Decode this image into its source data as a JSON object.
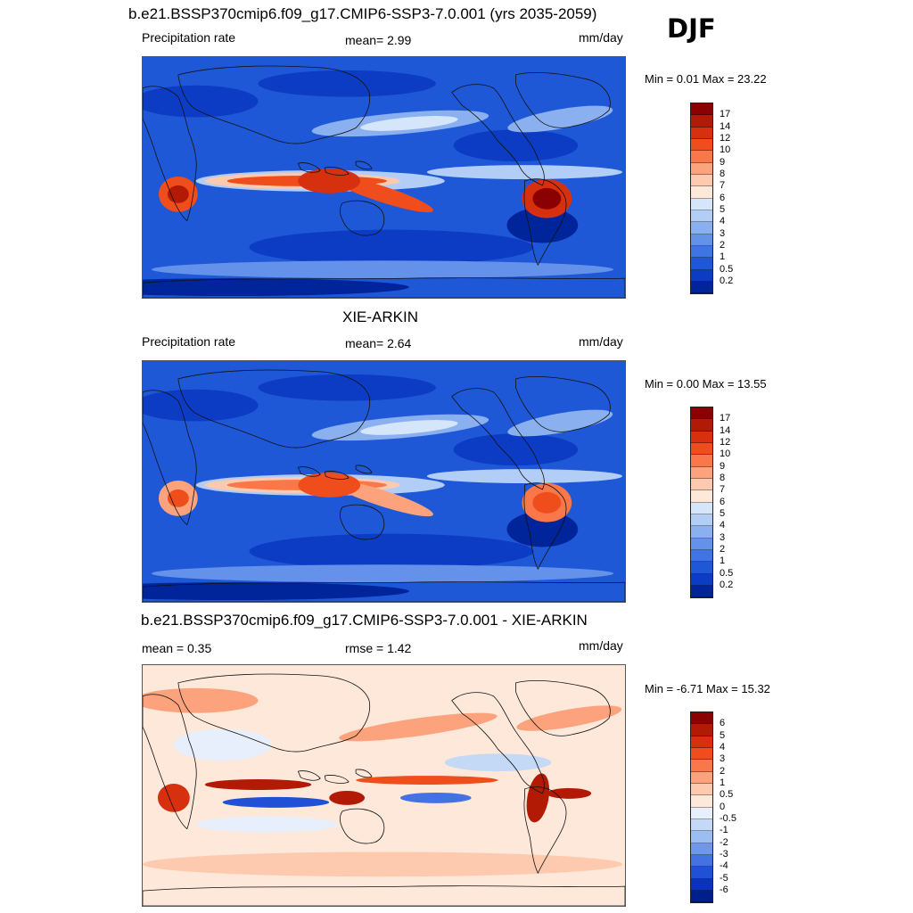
{
  "season": "DJF",
  "panels": [
    {
      "title": "b.e21.BSSP370cmip6.f09_g17.CMIP6-SSP3-7.0.001 (yrs 2035-2059)",
      "left_label": "Precipitation rate",
      "mid_label": "mean=   2.99",
      "units": "mm/day",
      "minmax": "Min =   0.01 Max =  23.22",
      "map_kind": "precip",
      "colorbar": {
        "colors": [
          "#8b0000",
          "#b31a06",
          "#d7300f",
          "#ef4d1c",
          "#f97748",
          "#fca37d",
          "#fdcab0",
          "#fee8d9",
          "#d6e6fa",
          "#b2cdf6",
          "#8bb0f0",
          "#6492ea",
          "#3f74e4",
          "#1f58d7",
          "#0d3cc4",
          "#00259a"
        ],
        "labels": [
          "17",
          "14",
          "12",
          "10",
          "9",
          "8",
          "7",
          "6",
          "5",
          "4",
          "3",
          "2",
          "1",
          "0.5",
          "0.2"
        ]
      }
    },
    {
      "title": "XIE-ARKIN",
      "left_label": "Precipitation rate",
      "mid_label": "mean=   2.64",
      "units": "mm/day",
      "minmax": "Min =   0.00 Max =  13.55",
      "map_kind": "precip_obs",
      "colorbar": {
        "colors": [
          "#8b0000",
          "#b31a06",
          "#d7300f",
          "#ef4d1c",
          "#f97748",
          "#fca37d",
          "#fdcab0",
          "#fee8d9",
          "#d6e6fa",
          "#b2cdf6",
          "#8bb0f0",
          "#6492ea",
          "#3f74e4",
          "#1f58d7",
          "#0d3cc4",
          "#00259a"
        ],
        "labels": [
          "17",
          "14",
          "12",
          "10",
          "9",
          "8",
          "7",
          "6",
          "5",
          "4",
          "3",
          "2",
          "1",
          "0.5",
          "0.2"
        ]
      }
    },
    {
      "title": "b.e21.BSSP370cmip6.f09_g17.CMIP6-SSP3-7.0.001 - XIE-ARKIN",
      "left_label": "mean =   0.35",
      "mid_label": "rmse =   1.42",
      "units": "mm/day",
      "minmax": "Min =  -6.71 Max =  15.32",
      "map_kind": "diff",
      "colorbar": {
        "colors": [
          "#8b0000",
          "#b31a06",
          "#d7300f",
          "#ef4d1c",
          "#f97748",
          "#fca37d",
          "#fdcab0",
          "#fee8d9",
          "#e6effb",
          "#c4d9f6",
          "#9cbdf1",
          "#6f98ea",
          "#4572e2",
          "#2050d6",
          "#0b32be",
          "#001f8c"
        ],
        "labels": [
          "6",
          "5",
          "4",
          "3",
          "2",
          "1",
          "0.5",
          "0",
          "-0.5",
          "-1",
          "-2",
          "-3",
          "-4",
          "-5",
          "-6"
        ]
      }
    }
  ]
}
